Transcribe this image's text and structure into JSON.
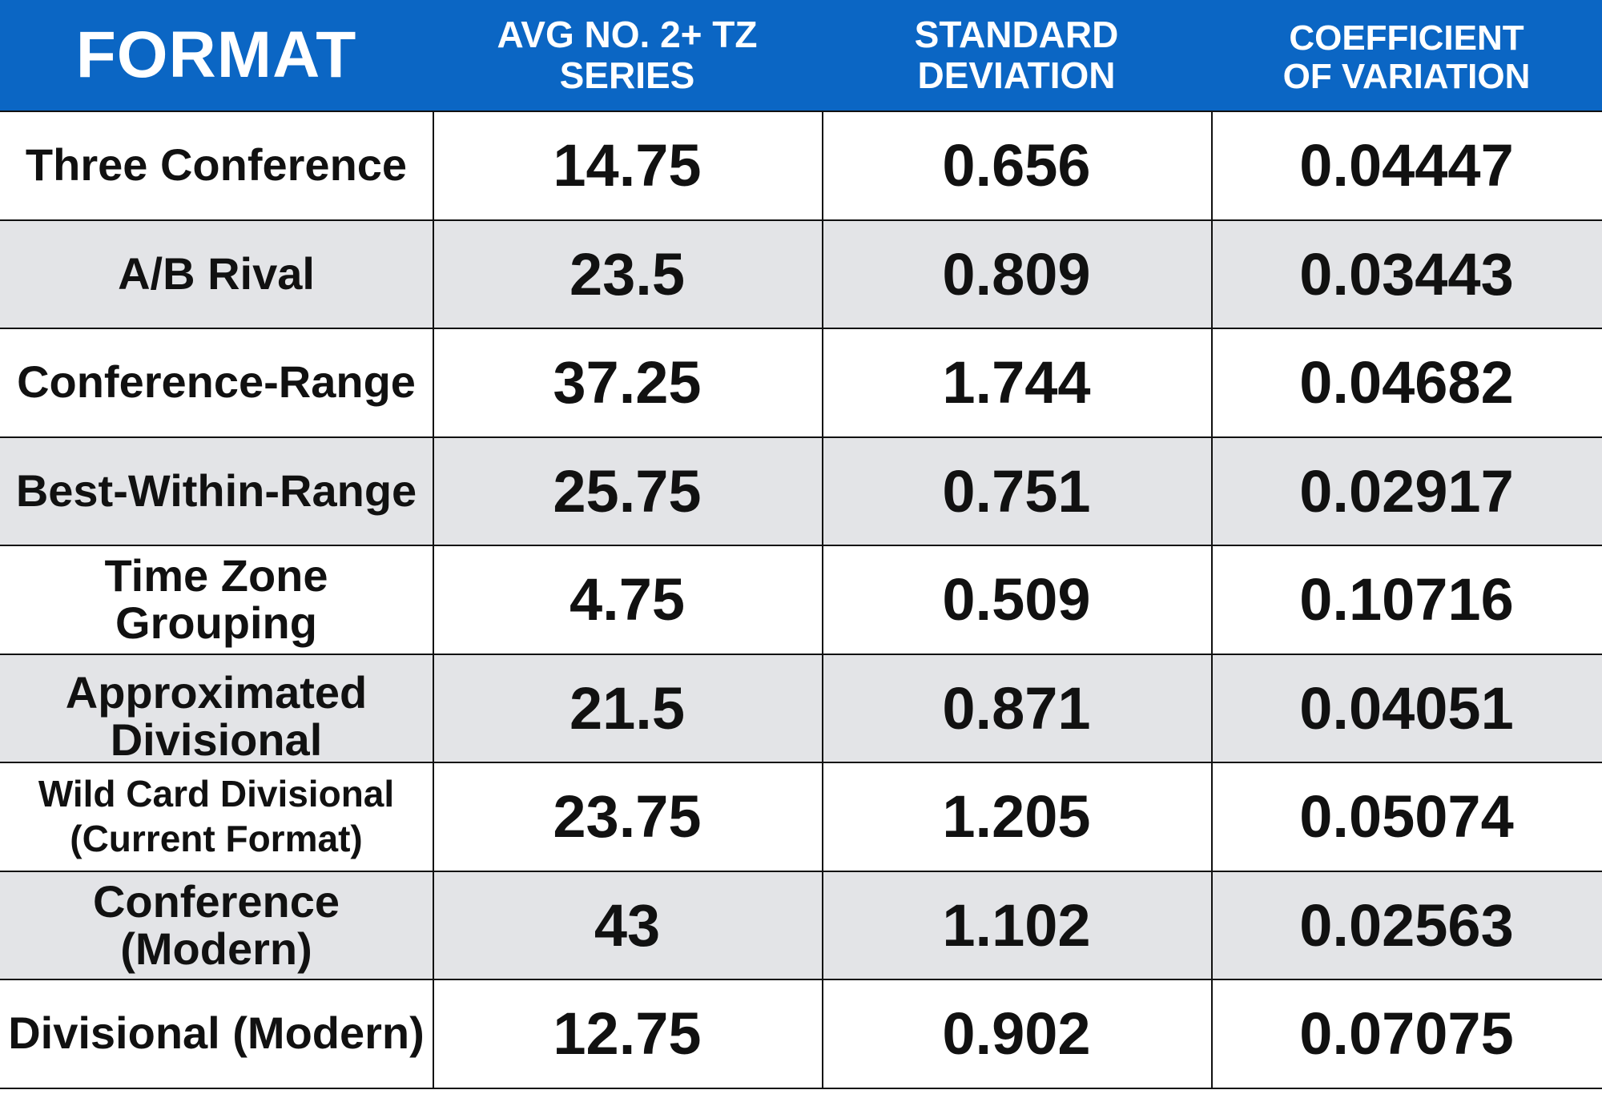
{
  "table": {
    "headers": {
      "format": "FORMAT",
      "avg": "AVG NO. 2+ TZ SERIES",
      "std": "STANDARD DEVIATION",
      "cov": "COEFFICIENT OF VARIATION"
    },
    "rows": [
      {
        "format": "Three Conference",
        "avg": "14.75",
        "std": "0.656",
        "cov": "0.04447"
      },
      {
        "format": "A/B Rival",
        "avg": "23.5",
        "std": "0.809",
        "cov": "0.03443"
      },
      {
        "format": "Conference-Range",
        "avg": "37.25",
        "std": "1.744",
        "cov": "0.04682"
      },
      {
        "format": "Best-Within-Range",
        "avg": "25.75",
        "std": "0.751",
        "cov": "0.02917"
      },
      {
        "format": "Time Zone Grouping",
        "avg": "4.75",
        "std": "0.509",
        "cov": "0.10716"
      },
      {
        "format": "Approximated Divisional",
        "avg": "21.5",
        "std": "0.871",
        "cov": "0.04051"
      },
      {
        "format": "Wild Card Divisional (Current Format)",
        "avg": "23.75",
        "std": "1.205",
        "cov": "0.05074"
      },
      {
        "format": "Conference (Modern)",
        "avg": "43",
        "std": "1.102",
        "cov": "0.02563"
      },
      {
        "format": "Divisional (Modern)",
        "avg": "12.75",
        "std": "0.902",
        "cov": "0.07075"
      }
    ]
  },
  "colors": {
    "header_bg": "#0b66c4",
    "header_text": "#ffffff",
    "row_alt_bg": "#e3e4e7",
    "grid_line": "#111111"
  }
}
